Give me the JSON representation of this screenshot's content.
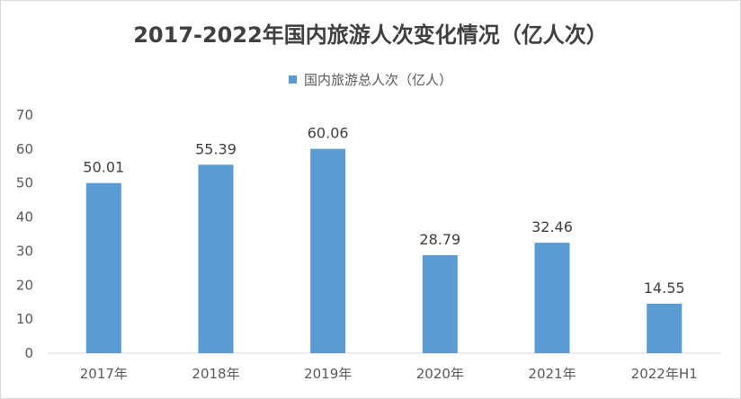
{
  "chart_data": {
    "type": "bar",
    "title": "2017-2022年国内旅游人次变化情况（亿人次）",
    "categories": [
      "2017年",
      "2018年",
      "2019年",
      "2020年",
      "2021年",
      "2022年H1"
    ],
    "series": [
      {
        "name": "国内旅游总人次（亿人）",
        "values": [
          50.01,
          55.39,
          60.06,
          28.79,
          32.46,
          14.55
        ]
      }
    ],
    "data_labels": [
      "50.01",
      "55.39",
      "60.06",
      "28.79",
      "32.46",
      "14.55"
    ],
    "y_ticks": [
      "0",
      "10",
      "20",
      "30",
      "40",
      "50",
      "60",
      "70"
    ],
    "ylim": [
      0,
      70
    ],
    "grid": false,
    "legend_position": "top",
    "bar_color": "#5b9bd5"
  }
}
